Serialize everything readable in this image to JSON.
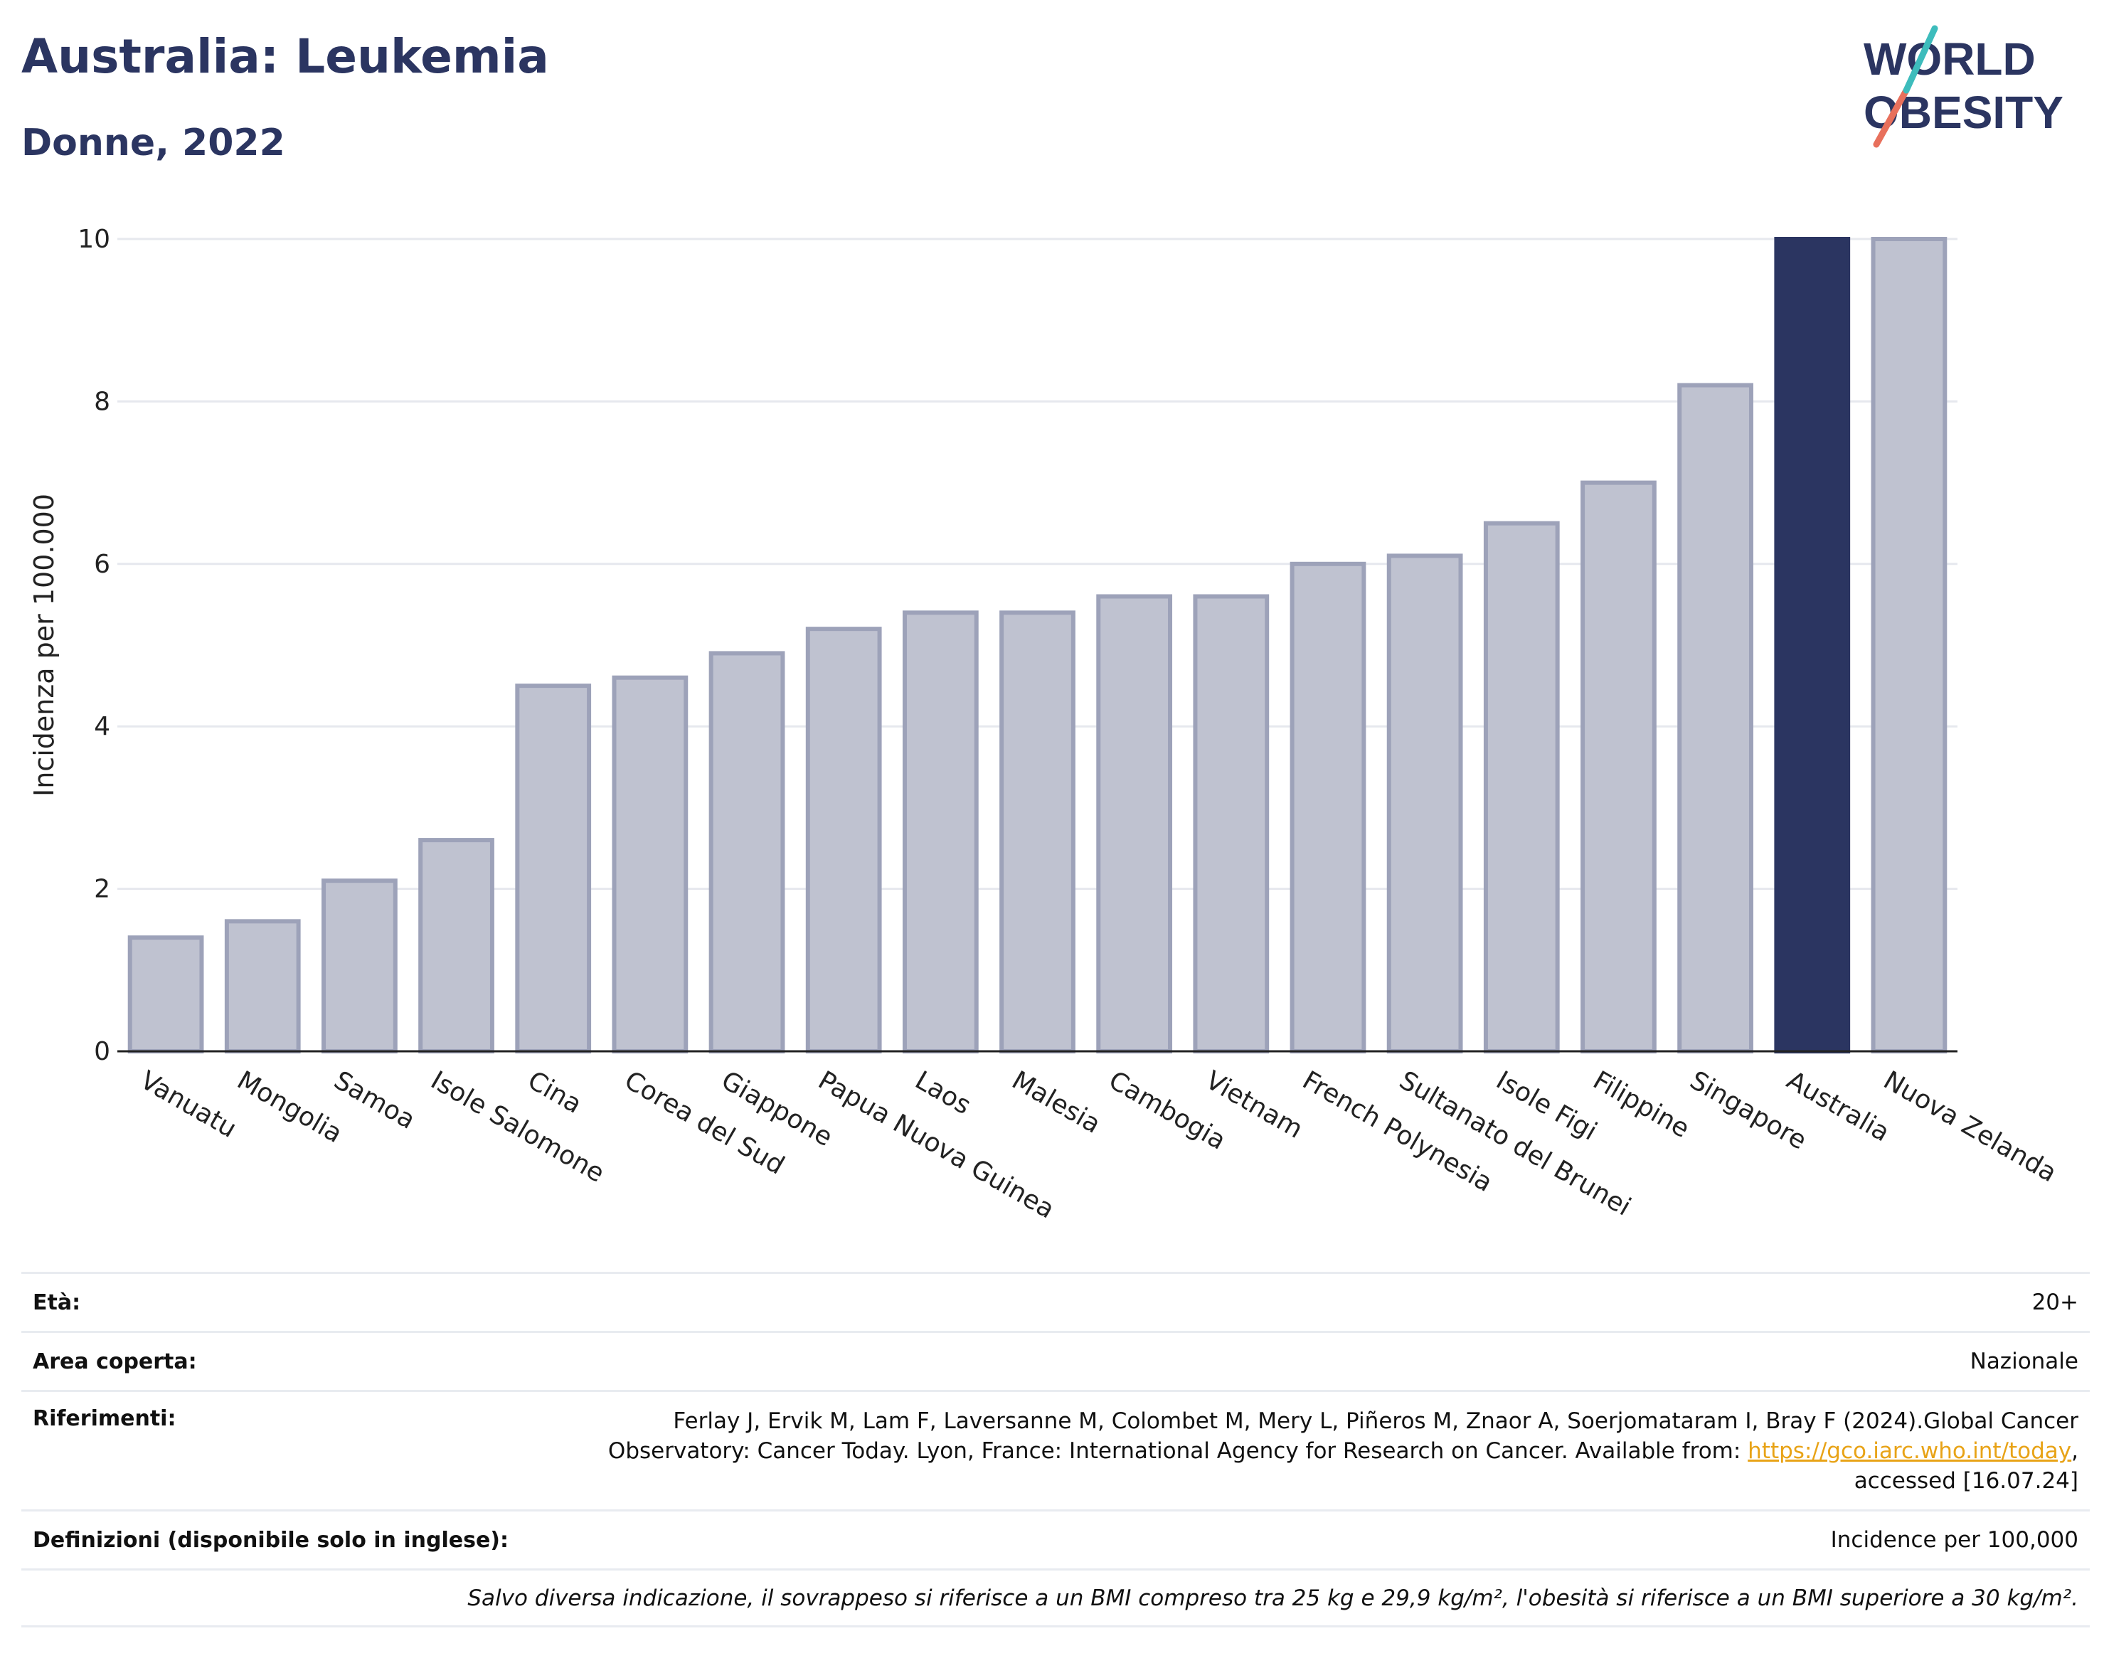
{
  "header": {
    "title": "Australia: Leukemia",
    "subtitle": "Donne, 2022",
    "logo_text": "WORLD OBESITY"
  },
  "chart_data": {
    "type": "bar",
    "title": "Australia: Leukemia",
    "subtitle": "Donne, 2022",
    "ylabel": "Incidenza per 100.000",
    "xlabel": "",
    "ylim": [
      0,
      10
    ],
    "yticks": [
      0,
      2,
      4,
      6,
      8,
      10
    ],
    "grid": true,
    "highlight": "Australia",
    "colors": {
      "bar": "#bfc2d0",
      "bar_border": "#9da2b9",
      "highlight": "#2b3561",
      "grid": "#e6e8ee",
      "axis": "#222222"
    },
    "categories": [
      "Vanuatu",
      "Mongolia",
      "Samoa",
      "Isole Salomone",
      "Cina",
      "Corea del Sud",
      "Giappone",
      "Papua Nuova Guinea",
      "Laos",
      "Malesia",
      "Cambogia",
      "Vietnam",
      "French Polynesia",
      "Sultanato del Brunei",
      "Isole Figi",
      "Filippine",
      "Singapore",
      "Australia",
      "Nuova Zelanda"
    ],
    "values": [
      1.4,
      1.6,
      2.1,
      2.6,
      4.5,
      4.6,
      4.9,
      5.2,
      5.4,
      5.4,
      5.6,
      5.6,
      6.0,
      6.1,
      6.5,
      7.0,
      8.2,
      10.0,
      10.0
    ]
  },
  "info": {
    "age_label": "Età:",
    "age_value": "20+",
    "area_label": "Area coperta:",
    "area_value": "Nazionale",
    "ref_label": "Riferimenti:",
    "ref_line1": "Ferlay J, Ervik M, Lam F, Laversanne M, Colombet M, Mery L, Piñeros M, Znaor A, Soerjomataram I, Bray F (2024).Global Cancer",
    "ref_line2": "Observatory: Cancer Today. Lyon, France: International Agency for Research on Cancer. Available from: ",
    "ref_link": "https://gco.iarc.who.int/today",
    "ref_line2_end": ",",
    "ref_line3": "accessed [16.07.24]",
    "def_label": "Definizioni (disponibile solo in inglese):",
    "def_value": "Incidence per 100,000",
    "note": "Salvo diversa indicazione, il sovrappeso si riferisce a un BMI compreso tra 25 kg e 29,9 kg/m², l'obesità si riferisce a un BMI superiore a 30 kg/m²."
  }
}
